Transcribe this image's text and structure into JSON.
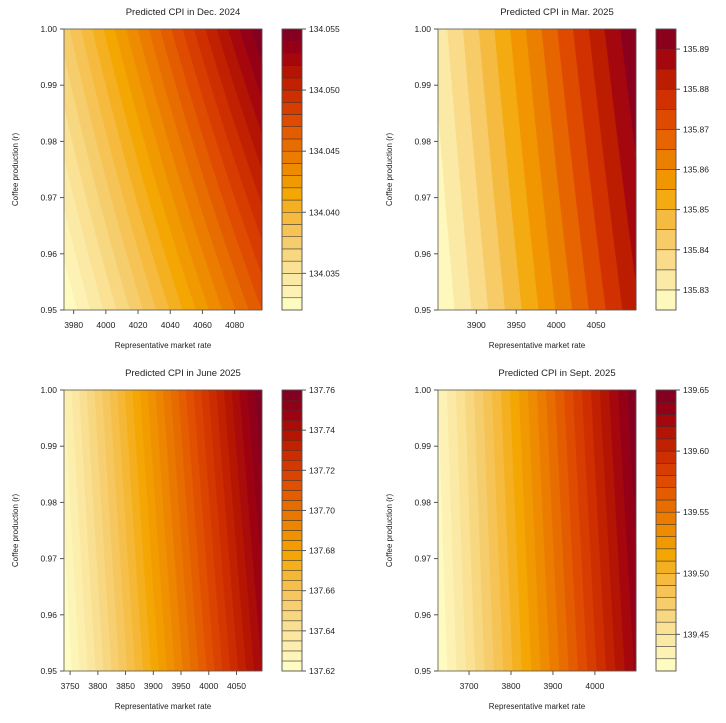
{
  "palette": [
    "#FFFFC8",
    "#FCEFAE",
    "#F9DE8F",
    "#F6CB68",
    "#F5B83A",
    "#F4A500",
    "#EE8B00",
    "#E86E00",
    "#E04E00",
    "#D13100",
    "#B81800",
    "#9C0012",
    "#7D0025"
  ],
  "chart_data": [
    {
      "type": "filled-contour",
      "title": "Predicted CPI in Dec. 2024",
      "xlabel": "Representative market rate",
      "ylabel": "Coffee production (r)",
      "xlim": [
        3974,
        4097
      ],
      "ylim": [
        0.95,
        1.0
      ],
      "xticks": [
        "3980",
        "4000",
        "4020",
        "4040",
        "4060",
        "4080"
      ],
      "yticks": [
        "0.95",
        "0.96",
        "0.97",
        "0.98",
        "0.99",
        "1.00"
      ],
      "zlim": [
        134.032,
        134.055
      ],
      "zstep": 0.001,
      "zticks": [
        "134.035",
        "134.040",
        "134.045",
        "134.050",
        "134.055"
      ],
      "z_grid": {
        "x": [
          3974,
          4097
        ],
        "y": [
          0.95,
          1.0
        ],
        "z": [
          [
            134.032,
            134.047
          ],
          [
            134.0375,
            134.055
          ]
        ]
      }
    },
    {
      "type": "filled-contour",
      "title": "Predicted CPI in Mar. 2025",
      "xlabel": "Representative market rate",
      "ylabel": "Coffee production (r)",
      "xlim": [
        3852,
        4100
      ],
      "ylim": [
        0.95,
        1.0
      ],
      "xticks": [
        "3900",
        "3950",
        "4000",
        "4050"
      ],
      "yticks": [
        "0.95",
        "0.96",
        "0.97",
        "0.98",
        "0.99",
        "1.00"
      ],
      "zlim": [
        135.825,
        135.895
      ],
      "zstep": 0.005,
      "zticks": [
        "135.83",
        "135.84",
        "135.85",
        "135.86",
        "135.87",
        "135.88",
        "135.89"
      ],
      "z_grid": {
        "x": [
          3852,
          4100
        ],
        "y": [
          0.95,
          1.0
        ],
        "z": [
          [
            135.825,
            135.884
          ],
          [
            135.832,
            135.895
          ]
        ]
      }
    },
    {
      "type": "filled-contour",
      "title": "Predicted CPI in June 2025",
      "xlabel": "Representative market rate",
      "ylabel": "Coffee production (r)",
      "xlim": [
        3739,
        4096
      ],
      "ylim": [
        0.95,
        1.0
      ],
      "xticks": [
        "3750",
        "3800",
        "3850",
        "3900",
        "3950",
        "4000",
        "4050"
      ],
      "yticks": [
        "0.95",
        "0.96",
        "0.97",
        "0.98",
        "0.99",
        "1.00"
      ],
      "zlim": [
        137.62,
        137.76
      ],
      "zstep": 0.005,
      "zticks": [
        "137.62",
        "137.64",
        "137.66",
        "137.68",
        "137.70",
        "137.72",
        "137.74",
        "137.76"
      ],
      "z_grid": {
        "x": [
          3739,
          4096
        ],
        "y": [
          0.95,
          1.0
        ],
        "z": [
          [
            137.62,
            137.745
          ],
          [
            137.63,
            137.76
          ]
        ]
      }
    },
    {
      "type": "filled-contour",
      "title": "Predicted CPI in Sept. 2025",
      "xlabel": "Representative market rate",
      "ylabel": "Coffee production (r)",
      "xlim": [
        3626,
        4098
      ],
      "ylim": [
        0.95,
        1.0
      ],
      "xticks": [
        "3700",
        "3800",
        "3900",
        "4000"
      ],
      "yticks": [
        "0.95",
        "0.96",
        "0.97",
        "0.98",
        "0.99",
        "1.00"
      ],
      "zlim": [
        139.42,
        139.65
      ],
      "zstep": 0.01,
      "zticks": [
        "139.45",
        "139.50",
        "139.55",
        "139.60",
        "139.65"
      ],
      "z_grid": {
        "x": [
          3626,
          4098
        ],
        "y": [
          0.95,
          1.0
        ],
        "z": [
          [
            139.42,
            139.632
          ],
          [
            139.43,
            139.65
          ]
        ]
      }
    }
  ]
}
